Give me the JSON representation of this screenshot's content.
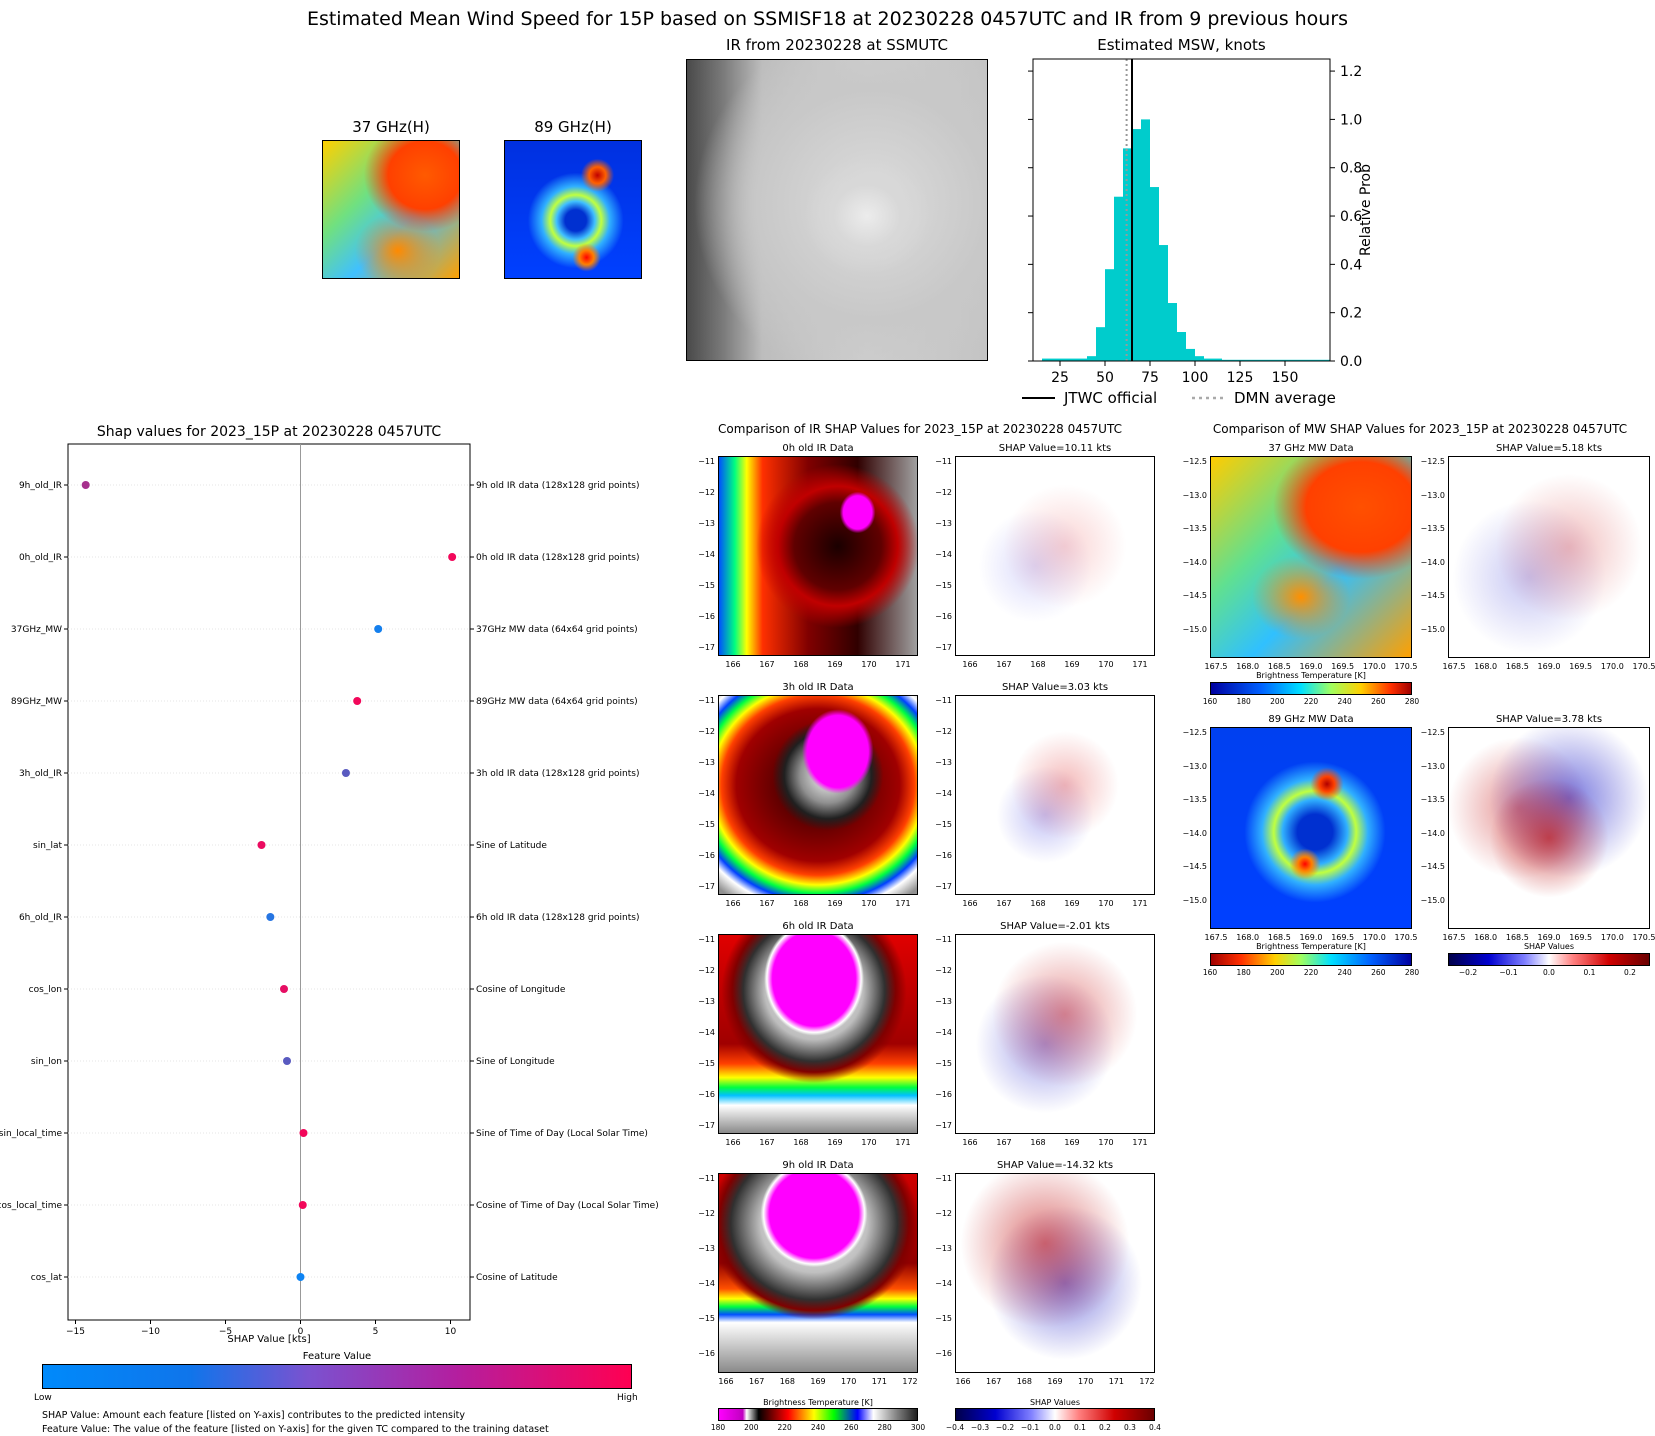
{
  "main_title": "Estimated Mean Wind Speed for 15P based on SSMISF18 at 20230228 0457UTC and IR from 9 previous hours",
  "top_panels": {
    "mw37_title": "37 GHz(H)",
    "mw89_title": "89 GHz(H)",
    "ir_title": "IR from 20230228 at  SSMUTC"
  },
  "colors": {
    "hist_bar": "#00cccc",
    "shap_low": "#008afb",
    "shap_high": "#ff0052"
  },
  "chart_data": [
    {
      "type": "bar",
      "title": "Estimated MSW, knots",
      "ylabel": "Relative Prob",
      "xticks": [
        25,
        50,
        75,
        100,
        125,
        150
      ],
      "yticks": [
        0.0,
        0.2,
        0.4,
        0.6,
        0.8,
        1.0,
        1.2
      ],
      "xlim": [
        10,
        175
      ],
      "ylim": [
        0,
        1.25
      ],
      "bins_x": [
        15,
        20,
        25,
        30,
        35,
        40,
        45,
        50,
        55,
        60,
        65,
        70,
        75,
        80,
        85,
        90,
        95,
        100,
        105,
        110,
        115,
        120,
        125,
        130,
        135,
        140,
        145,
        150,
        155,
        160,
        165,
        170
      ],
      "values": [
        0.01,
        0.01,
        0.01,
        0.01,
        0.01,
        0.02,
        0.14,
        0.38,
        0.68,
        0.88,
        0.96,
        1.0,
        0.72,
        0.48,
        0.24,
        0.12,
        0.05,
        0.02,
        0.01,
        0.01,
        0.005,
        0.005,
        0.005,
        0.005,
        0.005,
        0.005,
        0.005,
        0.005,
        0.005,
        0.005,
        0.005,
        0.005
      ],
      "jtwc_official": 65,
      "dmn_average": 62,
      "legend": [
        "JTWC official",
        "DMN average"
      ]
    },
    {
      "type": "scatter",
      "title": "Shap values for 2023_15P at 20230228 0457UTC",
      "xlabel": "SHAP Value [kts]",
      "xticks": [
        -15,
        -10,
        -5,
        0,
        5,
        10
      ],
      "xlim": [
        -15.5,
        11.3
      ],
      "features": [
        "9h_old_IR",
        "0h_old_IR",
        "37GHz_MW",
        "89GHz_MW",
        "3h_old_IR",
        "sin_lat",
        "6h_old_IR",
        "cos_lon",
        "sin_lon",
        "sin_local_time",
        "cos_local_time",
        "cos_lat"
      ],
      "descriptions": [
        "9h old IR data (128x128 grid points)",
        "0h old IR data (128x128 grid points)",
        "37GHz MW data (64x64 grid points)",
        "89GHz MW data (64x64 grid points)",
        "3h old IR data (128x128 grid points)",
        "Sine of Latitude",
        "6h old IR data (128x128 grid points)",
        "Cosine of Longitude",
        "Sine of Longitude",
        "Sine of Time of Day (Local Solar Time)",
        "Cosine of Time of Day (Local Solar Time)",
        "Cosine of Latitude"
      ],
      "shap_values": [
        -14.32,
        10.11,
        5.18,
        3.78,
        3.03,
        -2.6,
        -2.01,
        -1.1,
        -0.9,
        0.2,
        0.15,
        0.0
      ],
      "feature_values": [
        0.65,
        0.95,
        0.08,
        0.95,
        0.35,
        0.92,
        0.15,
        0.9,
        0.35,
        0.95,
        0.95,
        0.05
      ]
    }
  ],
  "shap_colorbar": {
    "title": "Feature Value",
    "low": "Low",
    "high": "High"
  },
  "footnotes": [
    "SHAP Value: Amount each feature [listed on Y-axis] contributes to the predicted intensity",
    "Feature Value: The value of the feature [listed on Y-axis] for the given TC compared to the training dataset"
  ],
  "ir_comparison": {
    "title": "Comparison of IR SHAP Values for 2023_15P at 20230228 0457UTC",
    "rows": [
      {
        "left_title": "0h old IR Data",
        "right_title": "SHAP Value=10.11 kts"
      },
      {
        "left_title": "3h old IR Data",
        "right_title": "SHAP Value=3.03 kts"
      },
      {
        "left_title": "6h old IR Data",
        "right_title": "SHAP Value=-2.01 kts"
      },
      {
        "left_title": "9h old IR Data",
        "right_title": "SHAP Value=-14.32 kts"
      }
    ],
    "yticks": [
      "-11",
      "-12",
      "-13",
      "-14",
      "-15",
      "-16",
      "-17"
    ],
    "xticks": [
      "166",
      "167",
      "168",
      "169",
      "170",
      "171"
    ],
    "xticks_last": [
      "166",
      "167",
      "168",
      "169",
      "170",
      "171",
      "172"
    ],
    "yticks_last": [
      "-11",
      "-12",
      "-13",
      "-14",
      "-15",
      "-16"
    ],
    "bt_colorbar": {
      "label": "Brightness Temperature [K]",
      "ticks": [
        "180",
        "200",
        "220",
        "240",
        "260",
        "280",
        "300"
      ]
    },
    "shap_colorbar": {
      "label": "SHAP Values",
      "ticks": [
        "-0.4",
        "-0.3",
        "-0.2",
        "-0.1",
        "0.0",
        "0.1",
        "0.2",
        "0.3",
        "0.4"
      ]
    }
  },
  "mw_comparison": {
    "title": "Comparison of MW SHAP Values for 2023_15P at 20230228 0457UTC",
    "rows": [
      {
        "left_title": "37 GHz MW Data",
        "right_title": "SHAP Value=5.18 kts"
      },
      {
        "left_title": "89 GHz MW Data",
        "right_title": "SHAP Value=3.78 kts"
      }
    ],
    "yticks": [
      "-12.5",
      "-13.0",
      "-13.5",
      "-14.0",
      "-14.5",
      "-15.0"
    ],
    "xticks": [
      "167.5",
      "168.0",
      "168.5",
      "169.0",
      "169.5",
      "170.0",
      "170.5"
    ],
    "bt_colorbar": {
      "label": "Brightness Temperature [K]",
      "ticks": [
        "160",
        "180",
        "200",
        "220",
        "240",
        "260",
        "280"
      ]
    },
    "shap_colorbar": {
      "label": "SHAP Values",
      "ticks": [
        "-0.2",
        "-0.1",
        "0.0",
        "0.1",
        "0.2"
      ]
    }
  }
}
